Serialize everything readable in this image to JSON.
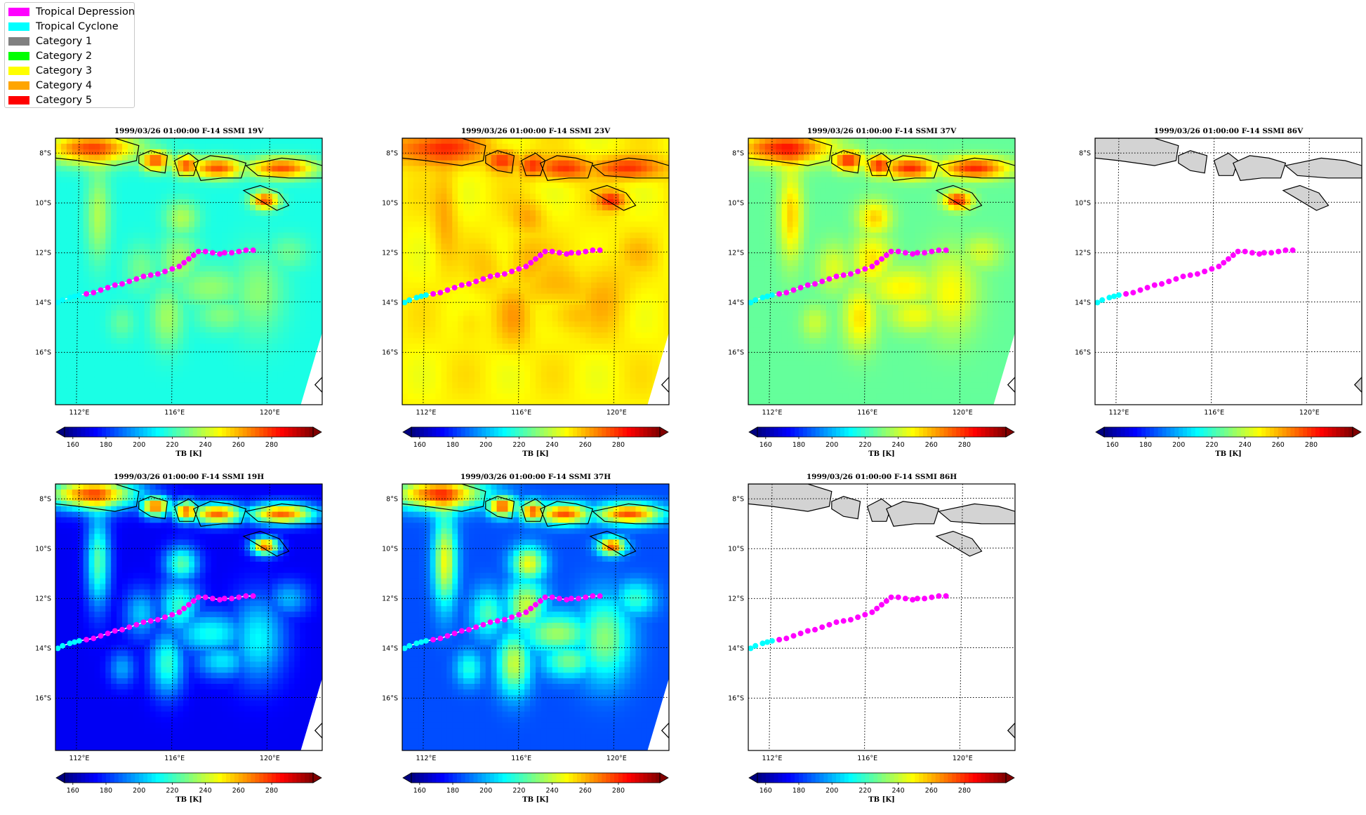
{
  "legend": {
    "entries": [
      {
        "label": "Tropical Depression",
        "color": "#ff00ff"
      },
      {
        "label": "Tropical Cyclone",
        "color": "#00ffff"
      },
      {
        "label": "Category 1",
        "color": "#808080"
      },
      {
        "label": "Category 2",
        "color": "#00ff00"
      },
      {
        "label": "Category 3",
        "color": "#ffff00"
      },
      {
        "label": "Category 4",
        "color": "#ffa500"
      },
      {
        "label": "Category 5",
        "color": "#ff0000"
      }
    ]
  },
  "chart_data": [
    {
      "type": "heatmap",
      "title": "1999/03/26 01:00:00  F-14 SSMI 19V",
      "field": "19V",
      "xticks": [
        "112°E",
        "116°E",
        "120°E"
      ],
      "yticks": [
        "8°S",
        "10°S",
        "12°S",
        "14°S",
        "16°S"
      ],
      "xlim": [
        111,
        122.2
      ],
      "ylim": [
        -18.1,
        -7.4
      ],
      "colorbar": {
        "label": "TB [K]",
        "ticks": [
          160,
          180,
          200,
          220,
          240,
          260,
          280
        ],
        "range": [
          155,
          305
        ]
      }
    },
    {
      "type": "heatmap",
      "title": "1999/03/26 01:00:00  F-14 SSMI 23V",
      "field": "23V",
      "xticks": [
        "112°E",
        "116°E",
        "120°E"
      ],
      "yticks": [
        "8°S",
        "10°S",
        "12°S",
        "14°S",
        "16°S"
      ],
      "xlim": [
        111,
        122.2
      ],
      "ylim": [
        -18.1,
        -7.4
      ],
      "colorbar": {
        "label": "TB [K]",
        "ticks": [
          160,
          180,
          200,
          220,
          240,
          260,
          280
        ],
        "range": [
          155,
          305
        ]
      }
    },
    {
      "type": "heatmap",
      "title": "1999/03/26 01:00:00  F-14 SSMI 37V",
      "field": "37V",
      "xticks": [
        "112°E",
        "116°E",
        "120°E"
      ],
      "yticks": [
        "8°S",
        "10°S",
        "12°S",
        "14°S",
        "16°S"
      ],
      "xlim": [
        111,
        122.2
      ],
      "ylim": [
        -18.1,
        -7.4
      ],
      "colorbar": {
        "label": "TB [K]",
        "ticks": [
          160,
          180,
          200,
          220,
          240,
          260,
          280
        ],
        "range": [
          155,
          305
        ]
      }
    },
    {
      "type": "heatmap",
      "title": "1999/03/26 01:00:00  F-14 SSMI 86V",
      "field": "empty",
      "xticks": [
        "112°E",
        "116°E",
        "120°E"
      ],
      "yticks": [
        "8°S",
        "10°S",
        "12°S",
        "14°S",
        "16°S"
      ],
      "xlim": [
        111,
        122.2
      ],
      "ylim": [
        -18.1,
        -7.4
      ],
      "colorbar": {
        "label": "TB [K]",
        "ticks": [
          160,
          180,
          200,
          220,
          240,
          260,
          280
        ],
        "range": [
          155,
          305
        ]
      }
    },
    {
      "type": "heatmap",
      "title": "1999/03/26 01:00:00  F-14 SSMI 19H",
      "field": "19H",
      "xticks": [
        "112°E",
        "116°E",
        "120°E"
      ],
      "yticks": [
        "8°S",
        "10°S",
        "12°S",
        "14°S",
        "16°S"
      ],
      "xlim": [
        111,
        122.2
      ],
      "ylim": [
        -18.1,
        -7.4
      ],
      "colorbar": {
        "label": "TB [K]",
        "ticks": [
          160,
          180,
          200,
          220,
          240,
          260,
          280
        ],
        "range": [
          155,
          305
        ]
      }
    },
    {
      "type": "heatmap",
      "title": "1999/03/26 01:00:00  F-14 SSMI 37H",
      "field": "37H",
      "xticks": [
        "112°E",
        "116°E",
        "120°E"
      ],
      "yticks": [
        "8°S",
        "10°S",
        "12°S",
        "14°S",
        "16°S"
      ],
      "xlim": [
        111,
        122.2
      ],
      "ylim": [
        -18.1,
        -7.4
      ],
      "colorbar": {
        "label": "TB [K]",
        "ticks": [
          160,
          180,
          200,
          220,
          240,
          260,
          280
        ],
        "range": [
          155,
          305
        ]
      }
    },
    {
      "type": "heatmap",
      "title": "1999/03/26 01:00:00  F-14 SSMI 86H",
      "field": "empty",
      "xticks": [
        "112°E",
        "116°E",
        "120°E"
      ],
      "yticks": [
        "8°S",
        "10°S",
        "12°S",
        "14°S",
        "16°S"
      ],
      "xlim": [
        111,
        122.2
      ],
      "ylim": [
        -18.1,
        -7.4
      ],
      "colorbar": {
        "label": "TB [K]",
        "ticks": [
          160,
          180,
          200,
          220,
          240,
          260,
          280
        ],
        "range": [
          155,
          305
        ]
      }
    }
  ],
  "track": {
    "lon": [
      110.9,
      111.1,
      111.3,
      111.6,
      111.8,
      112.0,
      112.3,
      112.6,
      112.9,
      113.2,
      113.5,
      113.8,
      114.1,
      114.4,
      114.7,
      115.0,
      115.3,
      115.6,
      115.9,
      116.2,
      116.4,
      116.6,
      116.8,
      117.0,
      117.3,
      117.6,
      117.9,
      118.1,
      118.4,
      118.7,
      119.0,
      119.3
    ],
    "lat": [
      -14.1,
      -14.0,
      -13.9,
      -13.8,
      -13.75,
      -13.7,
      -13.65,
      -13.6,
      -13.5,
      -13.4,
      -13.3,
      -13.25,
      -13.15,
      -13.05,
      -12.95,
      -12.9,
      -12.85,
      -12.75,
      -12.65,
      -12.55,
      -12.4,
      -12.25,
      -12.1,
      -11.95,
      -11.95,
      -12.0,
      -12.05,
      -12.0,
      -12.0,
      -11.95,
      -11.9,
      -11.9
    ],
    "category": [
      "Tropical Cyclone",
      "Tropical Cyclone",
      "Tropical Cyclone",
      "Tropical Cyclone",
      "Tropical Cyclone",
      "Tropical Cyclone",
      "Tropical Depression",
      "Tropical Depression",
      "Tropical Depression",
      "Tropical Depression",
      "Tropical Depression",
      "Tropical Depression",
      "Tropical Depression",
      "Tropical Depression",
      "Tropical Depression",
      "Tropical Depression",
      "Tropical Depression",
      "Tropical Depression",
      "Tropical Depression",
      "Tropical Depression",
      "Tropical Depression",
      "Tropical Depression",
      "Tropical Depression",
      "Tropical Depression",
      "Tropical Depression",
      "Tropical Depression",
      "Tropical Depression",
      "Tropical Depression",
      "Tropical Depression",
      "Tropical Depression",
      "Tropical Depression",
      "Tropical Depression"
    ]
  }
}
